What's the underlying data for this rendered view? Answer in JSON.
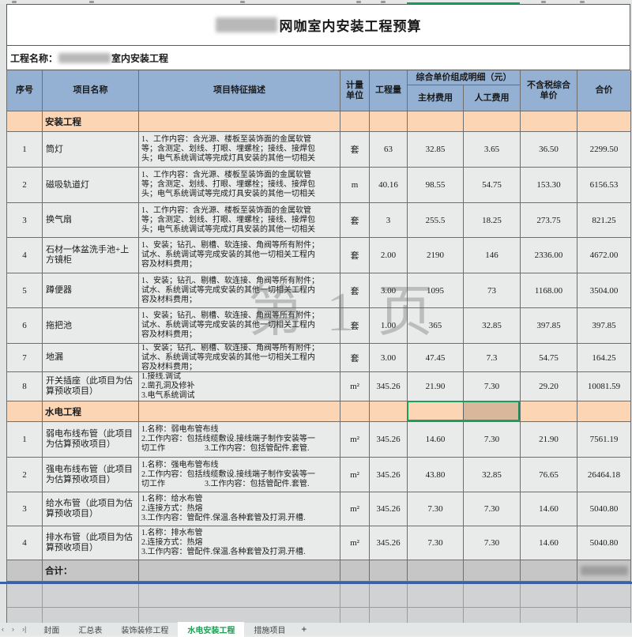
{
  "colors": {
    "header_bg": "#94b0d2",
    "section_bg": "#fbd5b4",
    "selection_green": "#18a05e",
    "total_row_bg": "#c6c6c6",
    "pagebreak_blue": "#3a62a7",
    "active_tab_green": "#1f9d55"
  },
  "title": {
    "text": "网咖室内安装工程预算",
    "prefix_redacted": true
  },
  "project_name": {
    "label": "工程名称：",
    "suffix": "室内安装工程",
    "middle_redacted": true
  },
  "watermark_text": "第 1 页",
  "header": {
    "seq": "序号",
    "name": "项目名称",
    "feature": "项目特征描述",
    "unit": "计量\n单位",
    "quantity": "工程量",
    "composite": "综合单价组成明细（元）",
    "material": "主材费用",
    "labor": "人工费用",
    "net_price": "不含税综合\n单价",
    "total": "合价"
  },
  "sections": [
    {
      "title": "安装工程",
      "rows": [
        {
          "seq": "1",
          "name": "筒灯",
          "desc": "1、工作内容：含光源、楼板至装饰面的金属软管\n等；含测定、划线、打眼、埋螺栓；接线、接焊包\n头；电气系统调试等完成灯具安装的其他一切相关",
          "unit": "套",
          "qty": "63",
          "material": "32.85",
          "labor": "3.65",
          "net": "36.50",
          "total": "2299.50"
        },
        {
          "seq": "2",
          "name": "磁吸轨道灯",
          "desc": "1、工作内容：含光源、楼板至装饰面的金属软管\n等；含测定、划线、打眼、埋螺栓；接线、接焊包\n头；电气系统调试等完成灯具安装的其他一切相关",
          "unit": "m",
          "qty": "40.16",
          "material": "98.55",
          "labor": "54.75",
          "net": "153.30",
          "total": "6156.53"
        },
        {
          "seq": "3",
          "name": "换气扇",
          "desc": "1、工作内容：含光源、楼板至装饰面的金属软管\n等；含测定、划线、打眼、埋螺栓；接线、接焊包\n头；电气系统调试等完成灯具安装的其他一切相关",
          "unit": "套",
          "qty": "3",
          "material": "255.5",
          "labor": "18.25",
          "net": "273.75",
          "total": "821.25"
        },
        {
          "seq": "4",
          "name": "石材一体盆洗手池+上方镜柜",
          "desc": "1、安装；钻孔、剔槽、软连接、角阀等所有附件；\n试水、系统调试等完成安装的其他一切相关工程内\n容及材料费用；",
          "unit": "套",
          "qty": "2.00",
          "material": "2190",
          "labor": "146",
          "net": "2336.00",
          "total": "4672.00"
        },
        {
          "seq": "5",
          "name": "蹲便器",
          "desc": "1、安装；钻孔、剔槽、软连接、角阀等所有附件；\n试水、系统调试等完成安装的其他一切相关工程内\n容及材料费用；",
          "unit": "套",
          "qty": "3.00",
          "material": "1095",
          "labor": "73",
          "net": "1168.00",
          "total": "3504.00"
        },
        {
          "seq": "6",
          "name": "拖把池",
          "desc": "1、安装；钻孔、剔槽、软连接、角阀等所有附件；\n试水、系统调试等完成安装的其他一切相关工程内\n容及材料费用；",
          "unit": "套",
          "qty": "1.00",
          "material": "365",
          "labor": "32.85",
          "net": "397.85",
          "total": "397.85"
        },
        {
          "seq": "7",
          "name": "地漏",
          "desc": "1、安装；钻孔、剔槽、软连接、角阀等所有附件；\n试水、系统调试等完成安装的其他一切相关工程内\n容及材料费用；",
          "unit": "套",
          "qty": "3.00",
          "material": "47.45",
          "labor": "7.3",
          "net": "54.75",
          "total": "164.25"
        },
        {
          "seq": "8",
          "name": "开关插座（此项目为估算预收项目）",
          "desc": "1.接线.调试\n2.凿孔洞及修补\n3.电气系统调试",
          "unit": "m²",
          "qty": "345.26",
          "material": "21.90",
          "labor": "7.30",
          "net": "29.20",
          "total": "10081.59"
        }
      ]
    },
    {
      "title": "水电工程",
      "rows": [
        {
          "seq": "1",
          "name": "弱电布线布管（此项目为估算预收项目）",
          "desc": "1.名称：弱电布管布线\n2.工作内容：包括线缆敷设.接线端子制作安装等一\n切工作　　　　　3.工作内容：包括管配件.套管.",
          "unit": "m²",
          "qty": "345.26",
          "material": "14.60",
          "labor": "7.30",
          "net": "21.90",
          "total": "7561.19"
        },
        {
          "seq": "2",
          "name": "强电布线布管（此项目为估算预收项目）",
          "desc": "1.名称：强电布管布线\n2.工作内容：包括线缆敷设.接线端子制作安装等一\n切工作　　　　　3.工作内容：包括管配件.套管.",
          "unit": "m²",
          "qty": "345.26",
          "material": "43.80",
          "labor": "32.85",
          "net": "76.65",
          "total": "26464.18"
        },
        {
          "seq": "3",
          "name": "给水布管（此项目为估算预收项目）",
          "desc": "1.名称：给水布管\n2.连接方式：热熔\n3.工作内容：管配件.保温.各种套管及打洞.开槽.",
          "unit": "m²",
          "qty": "345.26",
          "material": "7.30",
          "labor": "7.30",
          "net": "14.60",
          "total": "5040.80"
        },
        {
          "seq": "4",
          "name": "排水布管（此项目为估算预收项目）",
          "desc": "1.名称：排水布管\n2.连接方式：热熔\n3.工作内容：管配件.保温.各种套管及打洞.开槽.",
          "unit": "m²",
          "qty": "345.26",
          "material": "7.30",
          "labor": "7.30",
          "net": "14.60",
          "total": "5040.80"
        }
      ]
    }
  ],
  "total_row": {
    "label": "合计：",
    "value_redacted": true
  },
  "tabbar": {
    "nav": [
      "‹",
      "›",
      "›|"
    ],
    "tabs": [
      "封面",
      "汇总表",
      "装饰装修工程",
      "水电安装工程",
      "措施项目"
    ],
    "active_tab": "水电安装工程",
    "add_label": "+"
  }
}
